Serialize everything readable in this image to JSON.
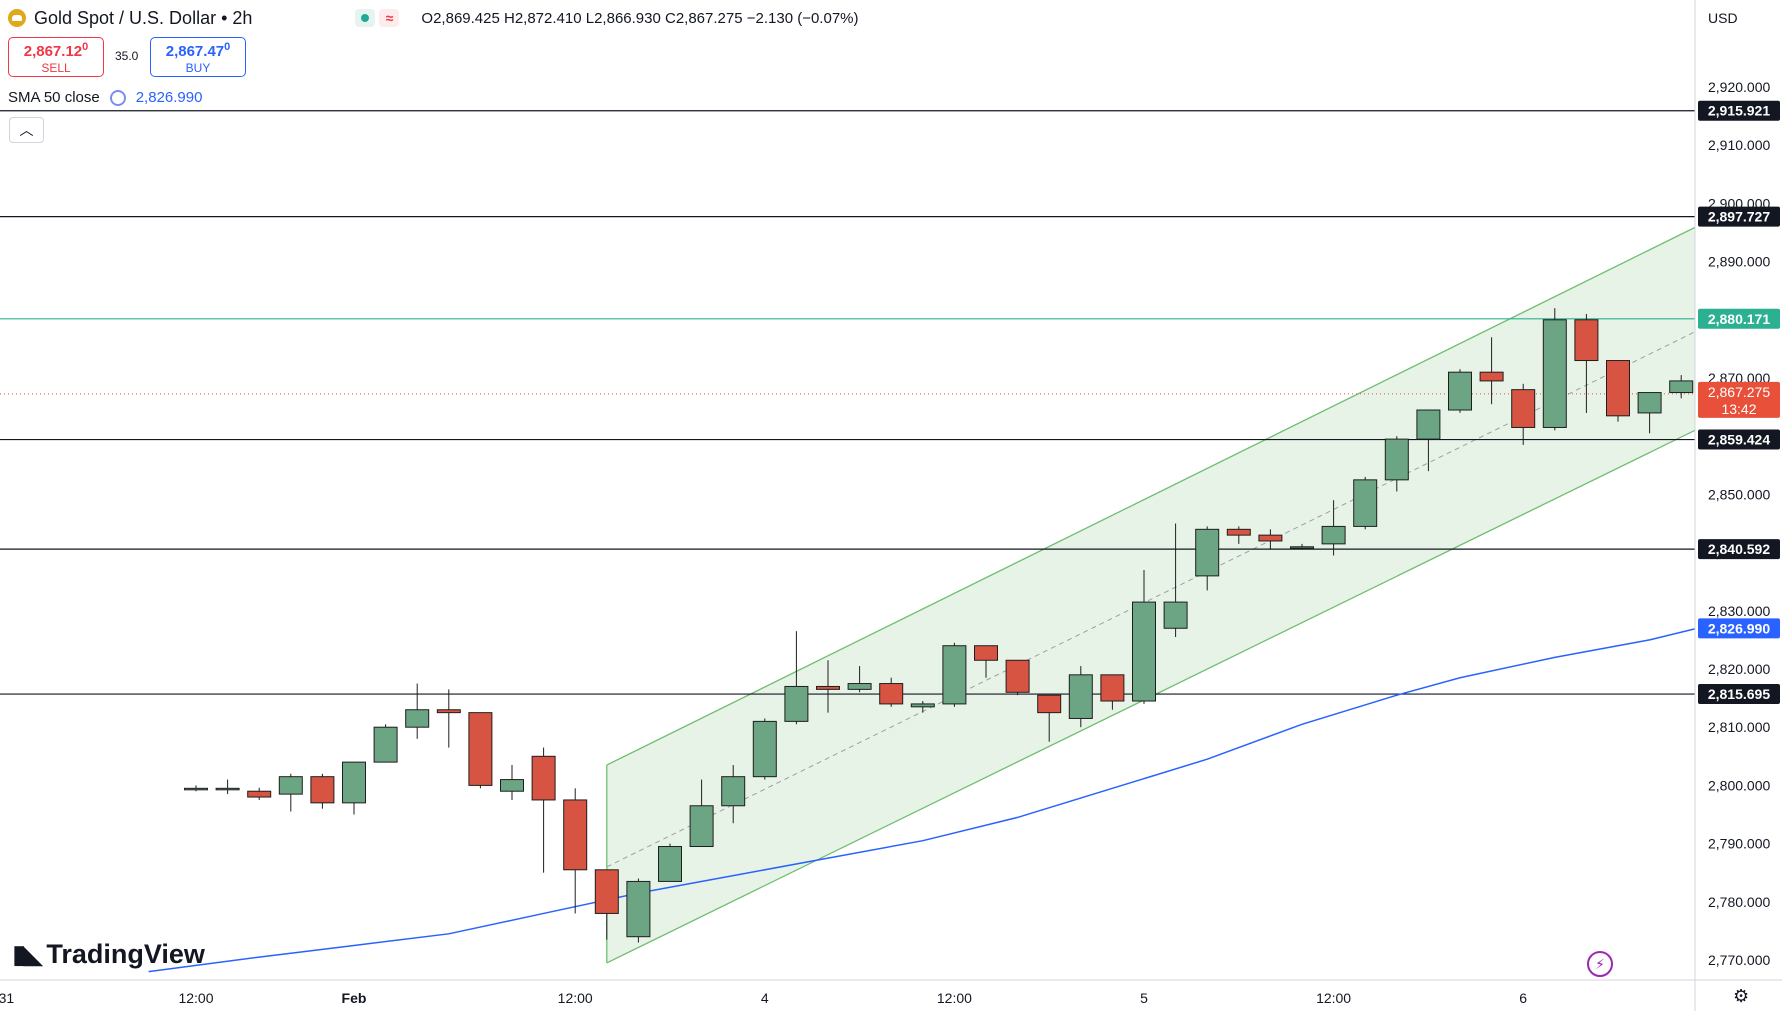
{
  "header": {
    "symbol": "Gold Spot / U.S. Dollar",
    "interval": "2h",
    "open": "O2,869.425",
    "high": "H2,872.410",
    "low": "L2,866.930",
    "close": "C2,867.275",
    "change": "−2.130 (−0.07%)",
    "icons": [
      "gold-icon",
      "market-open-dot-icon",
      "delay-wave-icon"
    ]
  },
  "trade": {
    "sell_price": "2,867.12",
    "sell_suffix": "0",
    "sell_label": "SELL",
    "spread": "35.0",
    "buy_price": "2,867.47",
    "buy_suffix": "0",
    "buy_label": "BUY"
  },
  "sma": {
    "label": "SMA 50 close",
    "value": "2,826.990",
    "color": "#2962ff"
  },
  "currency": "USD",
  "logo_text": "TradingView",
  "colors": {
    "up": "#6ba583",
    "down": "#d75442",
    "channel": "#6fbf6f",
    "channel_fill": "#e6f2e6",
    "sma": "#2962ff",
    "price_tag": "#e8503a",
    "teal_level": "#2bb091"
  },
  "chart_data": {
    "type": "candlestick",
    "y_ticks": [
      "2,770.000",
      "2,780.000",
      "2,790.000",
      "2,800.000",
      "2,810.000",
      "2,820.000",
      "2,830.000",
      "2,840.000",
      "2,850.000",
      "2,860.000",
      "2,870.000",
      "2,880.000",
      "2,890.000",
      "2,900.000",
      "2,910.000",
      "2,920.000"
    ],
    "x_ticks": [
      {
        "label": "31",
        "bar": -6
      },
      {
        "label": "12:00",
        "bar": 0
      },
      {
        "label": "Feb",
        "bar": 5
      },
      {
        "label": "12:00",
        "bar": 12
      },
      {
        "label": "4",
        "bar": 18
      },
      {
        "label": "12:00",
        "bar": 24
      },
      {
        "label": "5",
        "bar": 30
      },
      {
        "label": "12:00",
        "bar": 36
      },
      {
        "label": "6",
        "bar": 42
      }
    ],
    "candles": [
      {
        "o": 2799.5,
        "h": 2800.0,
        "l": 2799.0,
        "c": 2799.5
      },
      {
        "o": 2799.5,
        "h": 2801.0,
        "l": 2798.5,
        "c": 2799.5
      },
      {
        "o": 2799.0,
        "h": 2799.6,
        "l": 2797.5,
        "c": 2798.0
      },
      {
        "o": 2798.5,
        "h": 2802.0,
        "l": 2795.5,
        "c": 2801.5
      },
      {
        "o": 2801.5,
        "h": 2802.0,
        "l": 2796.0,
        "c": 2797.0
      },
      {
        "o": 2797.0,
        "h": 2804.0,
        "l": 2795.0,
        "c": 2804.0
      },
      {
        "o": 2804.0,
        "h": 2810.5,
        "l": 2804.0,
        "c": 2810.0
      },
      {
        "o": 2810.0,
        "h": 2817.5,
        "l": 2808.0,
        "c": 2813.0
      },
      {
        "o": 2813.0,
        "h": 2816.5,
        "l": 2806.5,
        "c": 2812.5
      },
      {
        "o": 2812.5,
        "h": 2812.5,
        "l": 2799.5,
        "c": 2800.0
      },
      {
        "o": 2799.0,
        "h": 2803.5,
        "l": 2797.5,
        "c": 2801.0
      },
      {
        "o": 2805.0,
        "h": 2806.5,
        "l": 2785.0,
        "c": 2797.5
      },
      {
        "o": 2797.5,
        "h": 2799.5,
        "l": 2778.0,
        "c": 2785.5
      },
      {
        "o": 2785.5,
        "h": 2785.5,
        "l": 2773.5,
        "c": 2778.0
      },
      {
        "o": 2774.0,
        "h": 2784.0,
        "l": 2773.0,
        "c": 2783.5
      },
      {
        "o": 2783.5,
        "h": 2790.0,
        "l": 2783.5,
        "c": 2789.5
      },
      {
        "o": 2789.5,
        "h": 2801.0,
        "l": 2789.5,
        "c": 2796.5
      },
      {
        "o": 2796.5,
        "h": 2803.5,
        "l": 2793.5,
        "c": 2801.5
      },
      {
        "o": 2801.5,
        "h": 2811.5,
        "l": 2801.0,
        "c": 2811.0
      },
      {
        "o": 2811.0,
        "h": 2826.5,
        "l": 2810.5,
        "c": 2817.0
      },
      {
        "o": 2817.0,
        "h": 2821.5,
        "l": 2812.5,
        "c": 2816.5
      },
      {
        "o": 2816.5,
        "h": 2820.5,
        "l": 2816.0,
        "c": 2817.5
      },
      {
        "o": 2817.5,
        "h": 2818.5,
        "l": 2813.5,
        "c": 2814.0
      },
      {
        "o": 2813.5,
        "h": 2814.5,
        "l": 2812.5,
        "c": 2814.0
      },
      {
        "o": 2814.0,
        "h": 2824.5,
        "l": 2813.5,
        "c": 2824.0
      },
      {
        "o": 2824.0,
        "h": 2824.0,
        "l": 2818.5,
        "c": 2821.5
      },
      {
        "o": 2821.5,
        "h": 2821.5,
        "l": 2815.5,
        "c": 2816.0
      },
      {
        "o": 2815.5,
        "h": 2815.5,
        "l": 2807.5,
        "c": 2812.5
      },
      {
        "o": 2811.5,
        "h": 2820.5,
        "l": 2810.0,
        "c": 2819.0
      },
      {
        "o": 2819.0,
        "h": 2819.0,
        "l": 2813.0,
        "c": 2814.5
      },
      {
        "o": 2814.5,
        "h": 2837.0,
        "l": 2814.0,
        "c": 2831.5
      },
      {
        "o": 2827.0,
        "h": 2845.0,
        "l": 2825.5,
        "c": 2831.5
      },
      {
        "o": 2836.0,
        "h": 2844.5,
        "l": 2833.5,
        "c": 2844.0
      },
      {
        "o": 2844.0,
        "h": 2844.5,
        "l": 2841.5,
        "c": 2843.0
      },
      {
        "o": 2843.0,
        "h": 2844.0,
        "l": 2840.5,
        "c": 2842.0
      },
      {
        "o": 2841.0,
        "h": 2841.5,
        "l": 2840.5,
        "c": 2841.0
      },
      {
        "o": 2841.5,
        "h": 2849.0,
        "l": 2839.5,
        "c": 2844.5
      },
      {
        "o": 2844.5,
        "h": 2853.0,
        "l": 2844.0,
        "c": 2852.5
      },
      {
        "o": 2852.5,
        "h": 2860.0,
        "l": 2850.5,
        "c": 2859.5
      },
      {
        "o": 2859.5,
        "h": 2864.0,
        "l": 2854.0,
        "c": 2864.5
      },
      {
        "o": 2864.5,
        "h": 2871.5,
        "l": 2864.0,
        "c": 2871.0
      },
      {
        "o": 2871.0,
        "h": 2877.0,
        "l": 2865.5,
        "c": 2869.5
      },
      {
        "o": 2868.0,
        "h": 2869.0,
        "l": 2858.5,
        "c": 2861.5
      },
      {
        "o": 2861.5,
        "h": 2882.0,
        "l": 2861.0,
        "c": 2880.0
      },
      {
        "o": 2880.0,
        "h": 2881.0,
        "l": 2864.0,
        "c": 2873.0
      },
      {
        "o": 2873.0,
        "h": 2873.0,
        "l": 2862.5,
        "c": 2863.5
      },
      {
        "o": 2864.0,
        "h": 2867.5,
        "l": 2860.5,
        "c": 2867.5
      },
      {
        "o": 2867.5,
        "h": 2870.5,
        "l": 2866.5,
        "c": 2869.5
      },
      {
        "o": 2869.5,
        "h": 2871.5,
        "l": 2864.0,
        "c": 2871.5
      },
      {
        "o": 2871.5,
        "h": 2873.0,
        "l": 2865.0,
        "c": 2869.0
      },
      {
        "o": 2869.4,
        "h": 2872.4,
        "l": 2866.9,
        "c": 2867.3
      }
    ],
    "sma_points": [
      [
        -1.5,
        2768.0
      ],
      [
        2,
        2770.5
      ],
      [
        5,
        2772.5
      ],
      [
        8,
        2774.5
      ],
      [
        11,
        2778.0
      ],
      [
        14,
        2781.5
      ],
      [
        17,
        2784.5
      ],
      [
        20,
        2787.5
      ],
      [
        23,
        2790.5
      ],
      [
        26,
        2794.5
      ],
      [
        29,
        2799.5
      ],
      [
        32,
        2804.5
      ],
      [
        35,
        2810.5
      ],
      [
        38,
        2815.5
      ],
      [
        40,
        2818.5
      ],
      [
        43,
        2822.0
      ],
      [
        46,
        2825.0
      ],
      [
        47.5,
        2826.99
      ]
    ],
    "horizontal_levels": [
      {
        "price": 2915.921,
        "label": "2,915.921",
        "color": "#131722"
      },
      {
        "price": 2897.727,
        "label": "2,897.727",
        "color": "#131722"
      },
      {
        "price": 2880.171,
        "label": "2,880.171",
        "color": "#2bb091"
      },
      {
        "price": 2859.424,
        "label": "2,859.424",
        "color": "#131722"
      },
      {
        "price": 2840.592,
        "label": "2,840.592",
        "color": "#131722"
      },
      {
        "price": 2815.695,
        "label": "2,815.695",
        "color": "#131722"
      }
    ],
    "channel": {
      "start_bar": 13,
      "end_bar": 52.7,
      "upper": [
        2803.5,
        2910.0
      ],
      "mid": [
        2786.0,
        2892.0
      ],
      "lower": [
        2769.5,
        2875.0
      ]
    },
    "current_price": {
      "price": 2867.275,
      "label": "2,867.275",
      "countdown": "13:42"
    },
    "sma_tag": {
      "price": 2826.99,
      "label": "2,826.990"
    }
  }
}
